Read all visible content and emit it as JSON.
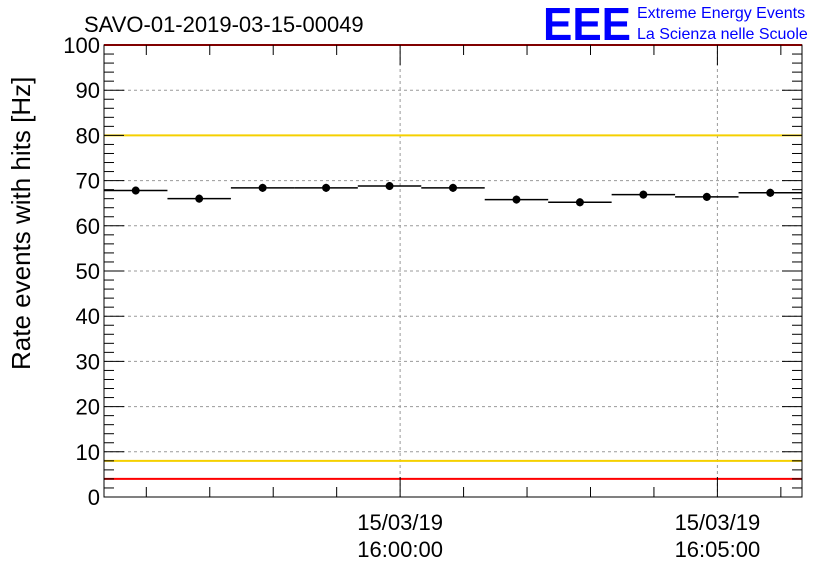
{
  "chart_data": {
    "type": "scatter",
    "title": "SAVO-01-2019-03-15-00049",
    "xlabel": "",
    "ylabel": "Rate events with hits [Hz]",
    "ylim": [
      0,
      100
    ],
    "y_ticks": [
      0,
      10,
      20,
      30,
      40,
      50,
      60,
      70,
      80,
      90,
      100
    ],
    "x_range_seconds": [
      0,
      660
    ],
    "x_major_ticks": [
      {
        "t": 280,
        "date": "15/03/19",
        "time": "16:00:00"
      },
      {
        "t": 580,
        "date": "15/03/19",
        "time": "16:05:00"
      }
    ],
    "x_minor_step_seconds": 60,
    "bin_width_seconds": 60,
    "bins_start": [
      0,
      60,
      120,
      180,
      240,
      300,
      360,
      420,
      480,
      540,
      600
    ],
    "values": [
      67.8,
      66.0,
      68.4,
      68.4,
      68.8,
      68.4,
      65.8,
      65.2,
      66.9,
      66.4,
      67.3
    ],
    "grid": true,
    "reference_lines": [
      {
        "value": 100,
        "color": "#ff0000"
      },
      {
        "value": 80,
        "color": "#f5d000"
      },
      {
        "value": 8,
        "color": "#f5d000"
      },
      {
        "value": 4,
        "color": "#ff0000"
      }
    ]
  },
  "logo": {
    "mark": "EEE",
    "line1": "Extreme Energy Events",
    "line2": "La Scienza nelle Scuole",
    "color": "#0000ff"
  }
}
